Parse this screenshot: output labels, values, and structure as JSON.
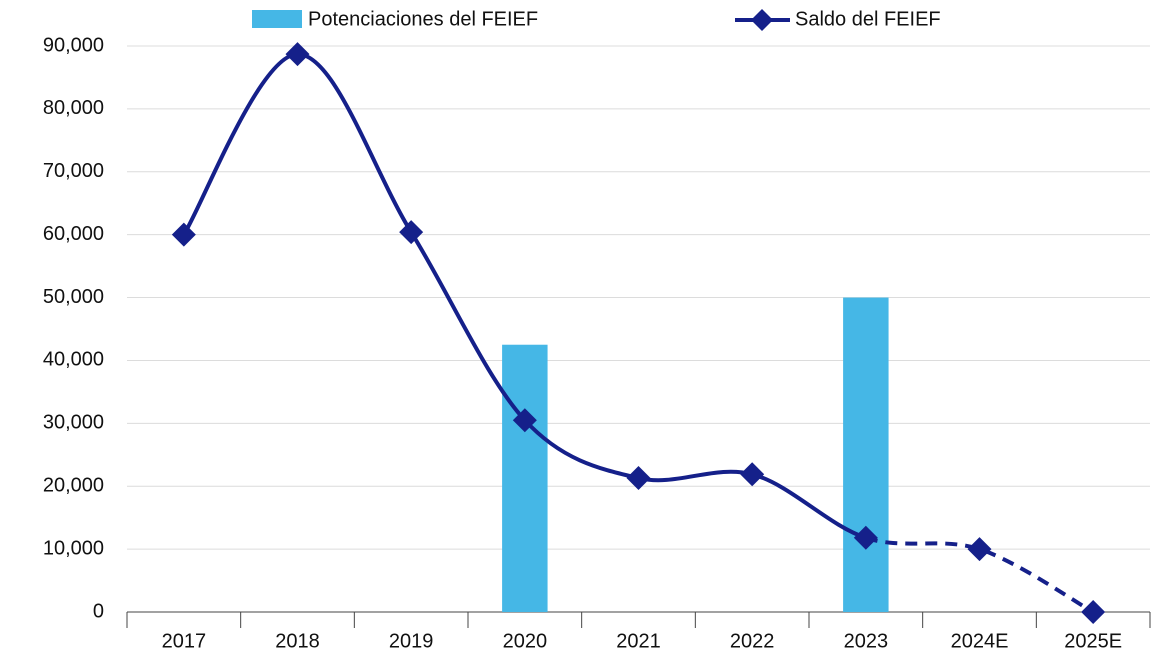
{
  "chart_data": {
    "type": "combo",
    "categories": [
      "2017",
      "2018",
      "2019",
      "2020",
      "2021",
      "2022",
      "2023",
      "2024E",
      "2025E"
    ],
    "series": [
      {
        "name": "Potenciaciones del FEIEF",
        "type": "bar",
        "color": "#45b7e6",
        "values": [
          null,
          null,
          null,
          42500,
          null,
          null,
          50000,
          null,
          null
        ]
      },
      {
        "name": "Saldo del FEIEF",
        "type": "line",
        "color": "#15208a",
        "dashed_from": 6,
        "values": [
          60000,
          88700,
          60400,
          30500,
          21300,
          21900,
          11800,
          10000,
          0
        ]
      }
    ],
    "ylim": [
      0,
      90000
    ],
    "yticks": [
      0,
      {
        "value": 10000,
        "label": "10,000"
      },
      {
        "value": 20000,
        "label": "20,000"
      },
      {
        "value": 30000,
        "label": "30,000"
      },
      {
        "value": 40000,
        "label": "40,000"
      },
      {
        "value": 50000,
        "label": "50,000"
      },
      {
        "value": 60000,
        "label": "60,000"
      },
      {
        "value": 70000,
        "label": "70,000"
      },
      {
        "value": 80000,
        "label": "80,000"
      },
      {
        "value": 90000,
        "label": "90,000"
      }
    ],
    "grid": true,
    "legend": "top"
  }
}
